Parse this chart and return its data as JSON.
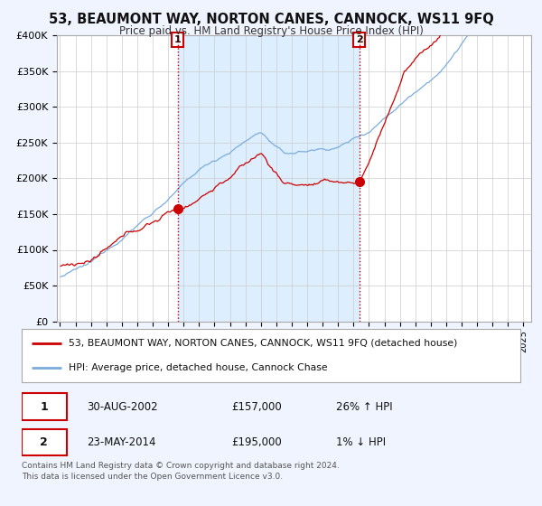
{
  "title": "53, BEAUMONT WAY, NORTON CANES, CANNOCK, WS11 9FQ",
  "subtitle": "Price paid vs. HM Land Registry's House Price Index (HPI)",
  "sale1_price": 157000,
  "sale1_label": "30-AUG-2002",
  "sale1_pct": "26% ↑ HPI",
  "sale2_price": 195000,
  "sale2_label": "23-MAY-2014",
  "sale2_pct": "1% ↓ HPI",
  "legend_red": "53, BEAUMONT WAY, NORTON CANES, CANNOCK, WS11 9FQ (detached house)",
  "legend_blue": "HPI: Average price, detached house, Cannock Chase",
  "footer": "Contains HM Land Registry data © Crown copyright and database right 2024.\nThis data is licensed under the Open Government Licence v3.0.",
  "bg_color": "#f0f4ff",
  "plot_bg": "#ffffff",
  "shaded_region_color": "#ddeeff",
  "red_line_color": "#cc0000",
  "blue_line_color": "#7aaddd",
  "ylim": [
    0,
    400000
  ],
  "yticks": [
    0,
    50000,
    100000,
    150000,
    200000,
    250000,
    300000,
    350000,
    400000
  ],
  "sale1_t": 2002.625,
  "sale2_t": 2014.375
}
